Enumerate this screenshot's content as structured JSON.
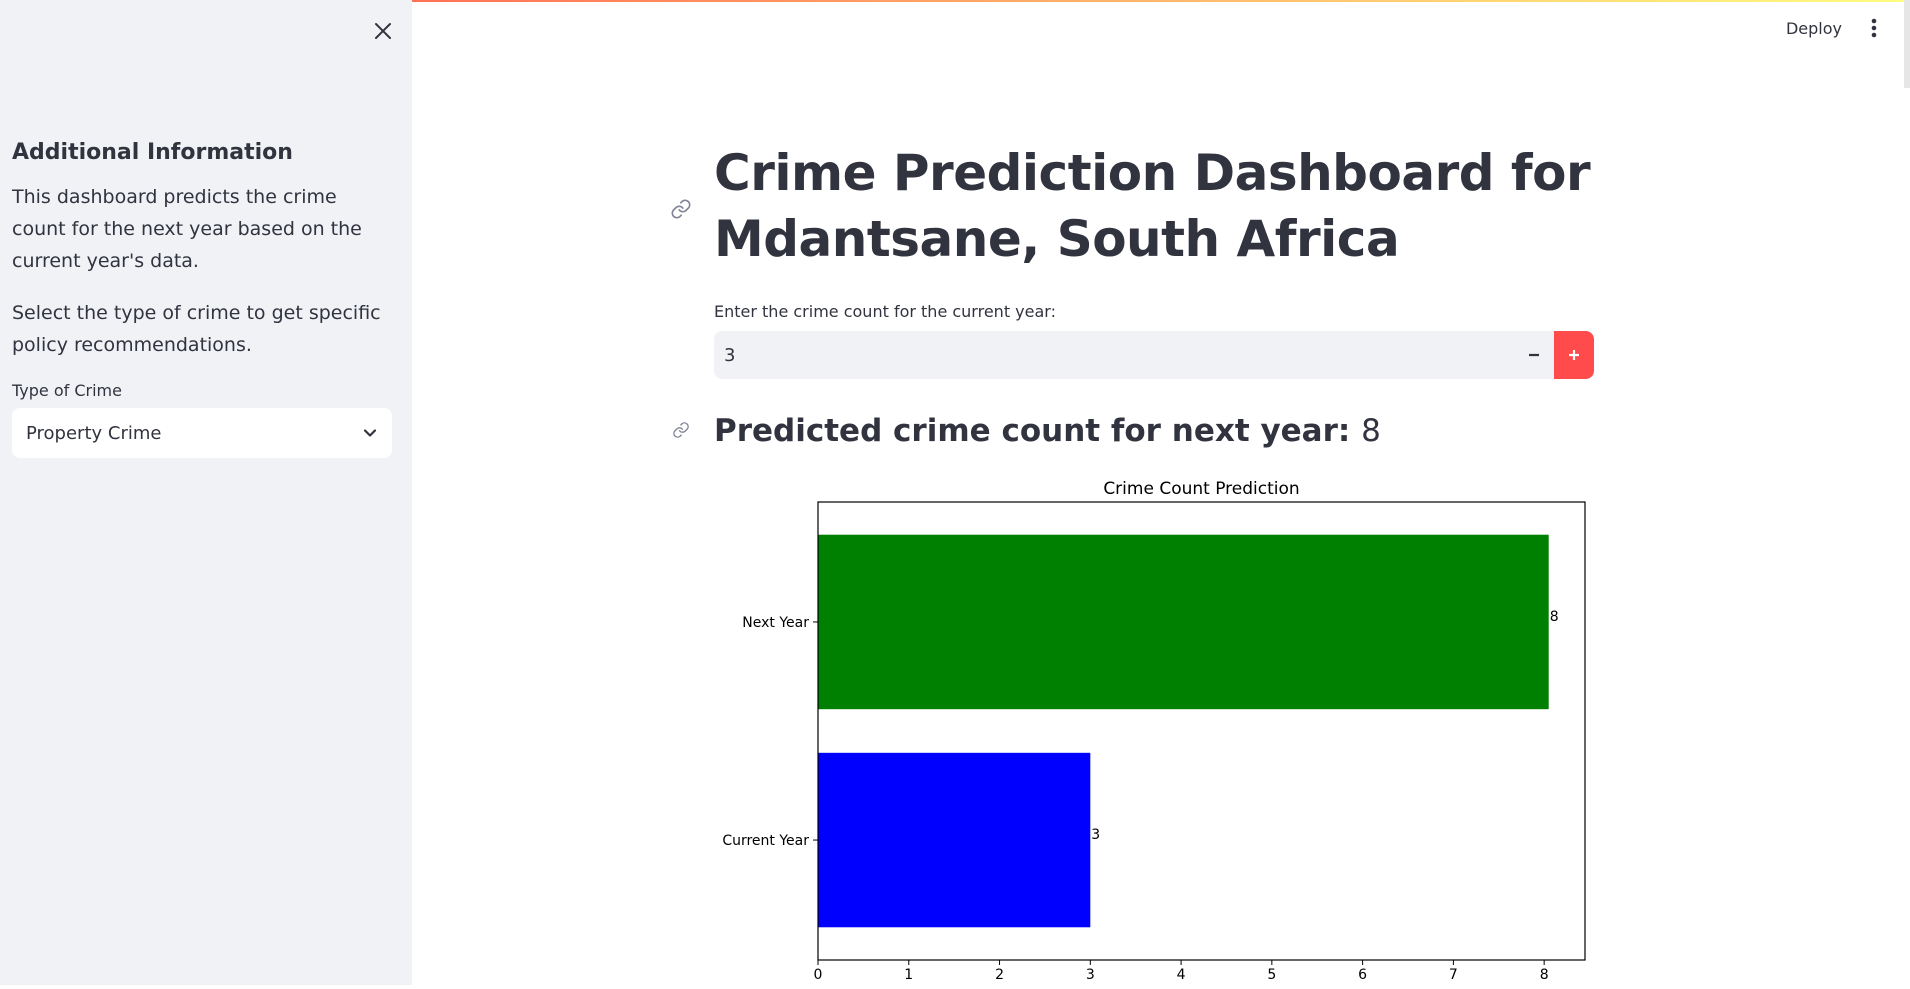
{
  "header": {
    "deploy_label": "Deploy"
  },
  "sidebar": {
    "heading": "Additional Information",
    "paragraph1": "This dashboard predicts the crime count for the next year based on the current year's data.",
    "paragraph2": "Select the type of crime to get specific policy recommendations.",
    "select_label": "Type of Crime",
    "select_value": "Property Crime"
  },
  "main": {
    "title": "Crime Prediction Dashboard for Mdantsane, South Africa",
    "input_label": "Enter the crime count for the current year:",
    "input_value": "3",
    "prediction_label": "Predicted crime count for next year:",
    "prediction_value": "8"
  },
  "colors": {
    "accent": "#ff4b4b",
    "sidebar_bg": "#f0f2f6",
    "text": "#31333f"
  },
  "chart_data": {
    "type": "bar",
    "orientation": "horizontal",
    "title": "Crime Count Prediction",
    "categories": [
      "Current Year",
      "Next Year"
    ],
    "values": [
      3,
      8.05
    ],
    "value_labels": [
      "3",
      "8"
    ],
    "colors": [
      "#0000ff",
      "#008000"
    ],
    "xlim": [
      0,
      8.45
    ],
    "xticks": [
      0,
      1,
      2,
      3,
      4,
      5,
      6,
      7,
      8
    ]
  }
}
